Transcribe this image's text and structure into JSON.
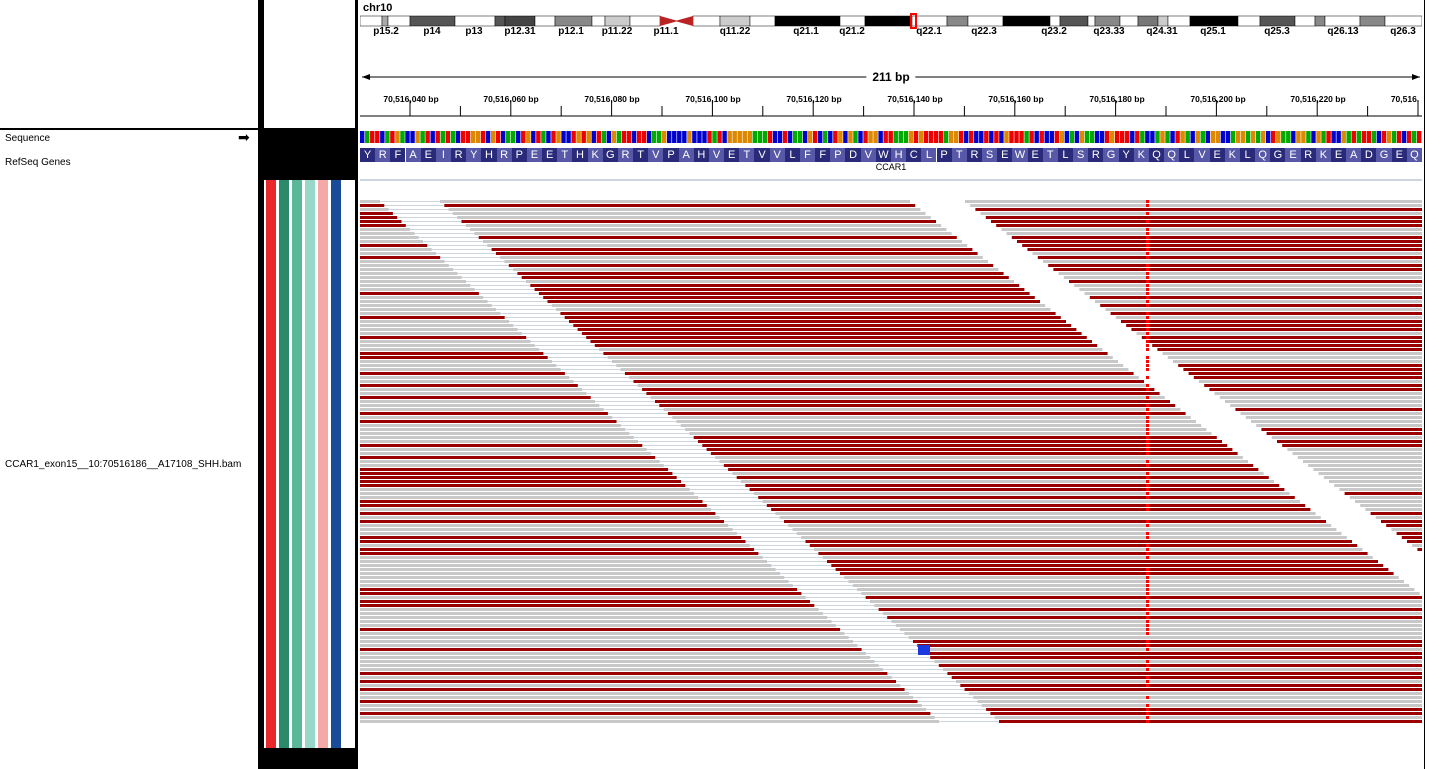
{
  "locus": {
    "chromosome": "chr10",
    "span": "211 bp"
  },
  "ideogram_bands": [
    "p15.2",
    "p14",
    "p13",
    "p12.31",
    "p12.1",
    "p11.22",
    "p11.1",
    "q11.22",
    "q21.1",
    "q21.2",
    "q22.1",
    "q22.3",
    "q23.2",
    "q23.33",
    "q24.31",
    "q25.1",
    "q25.3",
    "q26.13",
    "q26.3"
  ],
  "ruler_ticks": [
    "70,516,040 bp",
    "70,516,060 bp",
    "70,516,080 bp",
    "70,516,100 bp",
    "70,516,120 bp",
    "70,516,140 bp",
    "70,516,160 bp",
    "70,516,180 bp",
    "70,516,200 bp",
    "70,516,220 bp",
    "70,516,"
  ],
  "tracks": {
    "sequence_label": "Sequence",
    "sequence_arrow": "➡",
    "refseq_label": "RefSeq Genes",
    "bam_label": "CCAR1_exon15__10:70516186__A17108_SHH.bam"
  },
  "gene": {
    "name": "CCAR1",
    "amino_acids": [
      "Y",
      "R",
      "F",
      "A",
      "E",
      "I",
      "R",
      "Y",
      "H",
      "R",
      "P",
      "E",
      "E",
      "T",
      "H",
      "K",
      "G",
      "R",
      "T",
      "V",
      "P",
      "A",
      "H",
      "V",
      "E",
      "T",
      "V",
      "V",
      "L",
      "F",
      "F",
      "P",
      "D",
      "V",
      "W",
      "H",
      "C",
      "L",
      "P",
      "T",
      "R",
      "S",
      "E",
      "W",
      "E",
      "T",
      "L",
      "S",
      "R",
      "G",
      "Y",
      "K",
      "Q",
      "Q",
      "L",
      "V",
      "E",
      "K",
      "L",
      "Q",
      "G",
      "E",
      "R",
      "K",
      "E",
      "A",
      "D",
      "G",
      "E",
      "Q"
    ]
  },
  "colors": {
    "read_gray": "#c8c8c8",
    "read_red": "#990000",
    "mismatch_red": "#ff0000",
    "amino_dark": "#2a2a7a",
    "amino_light": "#5858a8",
    "attr_colors": [
      "#e8282a",
      "#2a8a6a",
      "#58b898",
      "#98d8c8",
      "#f4a8a8",
      "#1a4a9a",
      "#ffffff"
    ]
  }
}
